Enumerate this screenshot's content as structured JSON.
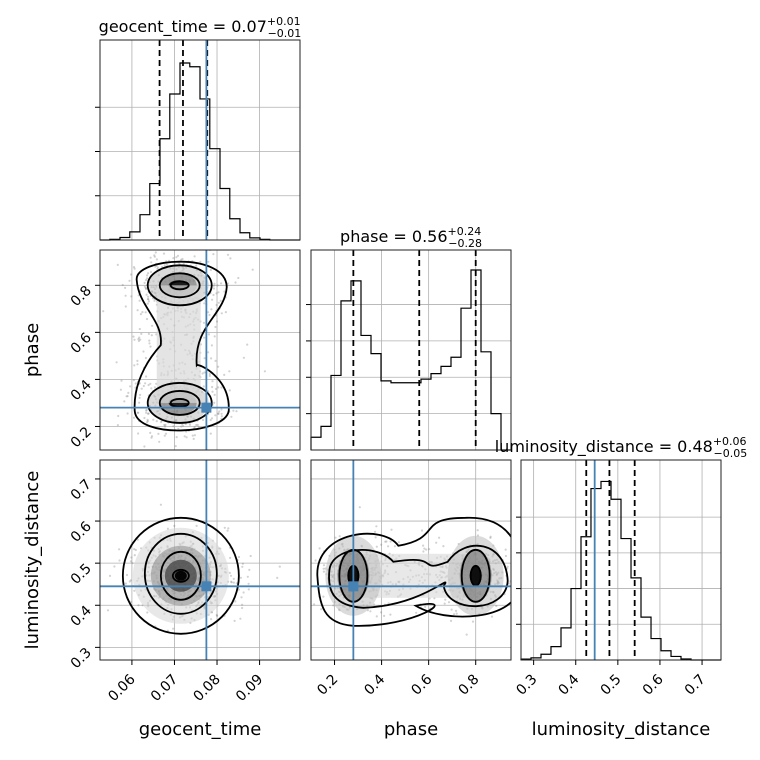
{
  "chart_data": {
    "type": "corner",
    "parameters": [
      "geocent_time",
      "phase",
      "luminosity_distance"
    ],
    "truths": {
      "geocent_time": 0.0775,
      "phase": 0.28,
      "luminosity_distance": 0.445
    },
    "colors": {
      "truth": "#4682b4",
      "hist": "#000000",
      "grid": "#b0b0b0",
      "quantile": "#000000"
    },
    "titles": [
      {
        "param": "geocent_time",
        "prefix": "geocent_time = 0.07",
        "plus": "+0.01",
        "minus": "−0.01"
      },
      {
        "param": "phase",
        "prefix": "phase = 0.56",
        "plus": "+0.24",
        "minus": "−0.28"
      },
      {
        "param": "luminosity_distance",
        "prefix": "luminosity_distance = 0.48",
        "plus": "+0.06",
        "minus": "−0.05"
      }
    ],
    "marginals": [
      {
        "param": "geocent_time",
        "range": [
          0.0525,
          0.0995
        ],
        "bin_edges": [
          0.0525,
          0.0548,
          0.0572,
          0.0595,
          0.0619,
          0.0642,
          0.0666,
          0.0689,
          0.0713,
          0.0736,
          0.076,
          0.0783,
          0.0807,
          0.083,
          0.0854,
          0.0877,
          0.0901,
          0.0924,
          0.0948,
          0.0971,
          0.0995
        ],
        "counts": [
          0.0,
          0.4,
          1.4,
          4.6,
          14.3,
          31.9,
          57.2,
          82.5,
          100,
          97.9,
          79.7,
          51.6,
          29.1,
          12.0,
          4.1,
          1.2,
          0.4,
          0.0,
          0,
          0
        ],
        "quantiles": [
          0.0665,
          0.072,
          0.0777
        ],
        "ylim": [
          0,
          113
        ],
        "yticks": [
          25,
          50,
          75
        ]
      },
      {
        "param": "phase",
        "range": [
          0.1,
          0.95
        ],
        "bin_edges": [
          0.1,
          0.1425,
          0.185,
          0.2275,
          0.27,
          0.3125,
          0.355,
          0.3975,
          0.44,
          0.4825,
          0.525,
          0.5675,
          0.61,
          0.6525,
          0.695,
          0.7375,
          0.78,
          0.8225,
          0.865,
          0.9075,
          0.95
        ],
        "counts": [
          7,
          13,
          41,
          82,
          93,
          63,
          53,
          38,
          37,
          37,
          37,
          39,
          42,
          46,
          51,
          78,
          99,
          54,
          20,
          0
        ],
        "quantiles": [
          0.28,
          0.56,
          0.8
        ],
        "ylim": [
          0,
          110
        ],
        "yticks": [
          20,
          40,
          60,
          80
        ]
      },
      {
        "param": "luminosity_distance",
        "range": [
          0.27,
          0.745
        ],
        "bin_edges": [
          0.27,
          0.2938,
          0.3175,
          0.3412,
          0.365,
          0.3888,
          0.4125,
          0.4362,
          0.46,
          0.4838,
          0.5075,
          0.5313,
          0.555,
          0.5788,
          0.6025,
          0.6263,
          0.65,
          0.6738,
          0.6975,
          0.7213,
          0.745
        ],
        "counts": [
          0.5,
          1.2,
          3.2,
          7.5,
          18.0,
          40,
          69,
          96,
          100,
          90,
          68,
          46,
          24,
          12,
          5.2,
          2.0,
          0.6,
          0.0,
          0,
          0
        ],
        "quantiles": [
          0.425,
          0.48,
          0.54
        ],
        "ylim": [
          0,
          112
        ],
        "yticks": [
          20,
          40,
          60,
          80
        ]
      }
    ],
    "joint_panels": [
      {
        "x": "geocent_time",
        "y": "phase",
        "description": "two modes at geocent_time≈0.071, phase≈0.30 and phase≈0.80",
        "modes": [
          [
            0.071,
            0.3
          ],
          [
            0.071,
            0.8
          ]
        ]
      },
      {
        "x": "geocent_time",
        "y": "luminosity_distance",
        "description": "single mode at geocent_time≈0.072, luminosity_distance≈0.47",
        "modes": [
          [
            0.072,
            0.47
          ]
        ]
      },
      {
        "x": "phase",
        "y": "luminosity_distance",
        "description": "two modes at phase≈0.28 and phase≈0.80, luminosity_distance≈0.47",
        "modes": [
          [
            0.28,
            0.47
          ],
          [
            0.8,
            0.47
          ]
        ]
      }
    ],
    "axes": {
      "geocent_time": {
        "range": [
          0.0525,
          0.0995
        ],
        "ticks": [
          0.06,
          0.07,
          0.08,
          0.09
        ],
        "tick_labels": [
          "0.06",
          "0.07",
          "0.08",
          "0.09"
        ]
      },
      "phase": {
        "range": [
          0.1,
          0.95
        ],
        "ticks": [
          0.2,
          0.4,
          0.6,
          0.8
        ],
        "tick_labels": [
          "0.2",
          "0.4",
          "0.6",
          "0.8"
        ]
      },
      "luminosity_distance": {
        "range": [
          0.27,
          0.745
        ],
        "ticks": [
          0.3,
          0.4,
          0.5,
          0.6,
          0.7
        ],
        "tick_labels": [
          "0.3",
          "0.4",
          "0.5",
          "0.6",
          "0.7"
        ]
      }
    },
    "axis_labels": {
      "geocent_time": "geocent_time",
      "phase": "phase",
      "luminosity_distance": "luminosity_distance"
    },
    "grid": true
  }
}
